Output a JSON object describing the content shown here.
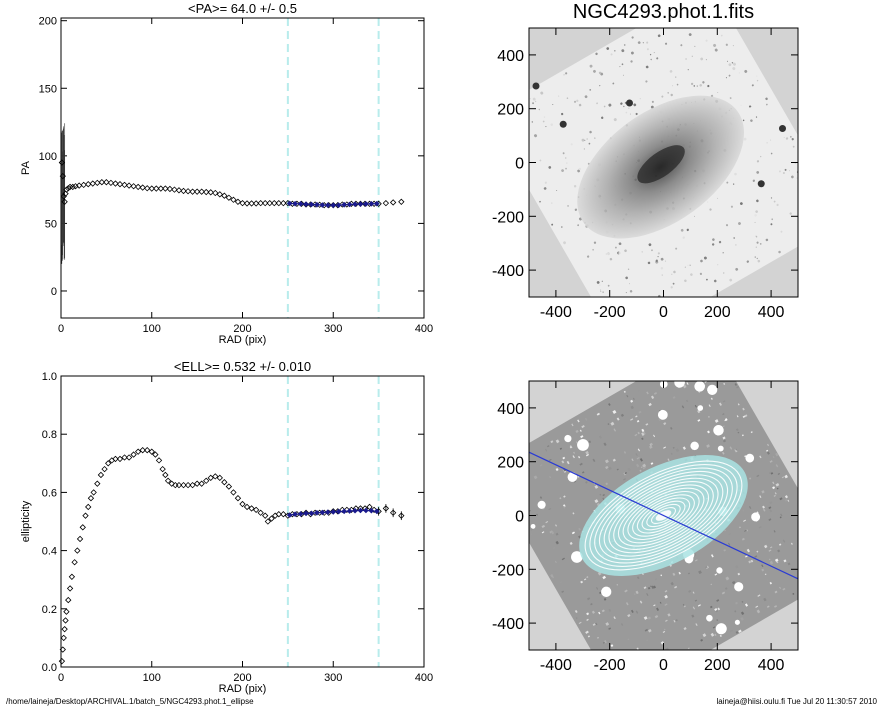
{
  "footer": {
    "path": "/home/laineja/Desktop/ARCHIVAL.1/batch_5/NGC4293.phot.1_ellipse",
    "user_date": "laineja@hiisi.oulu.fi  Tue Jul 20 11:30:57 2010"
  },
  "chart_data": [
    {
      "id": "pa",
      "type": "scatter",
      "title": "<PA>=  64.0 +/-   0.5",
      "xlabel": "RAD (pix)",
      "ylabel": "PA",
      "xlim": [
        0,
        400
      ],
      "ylim": [
        -20,
        202
      ],
      "xticks": [
        0,
        100,
        200,
        300,
        400
      ],
      "yticks": [
        0,
        50,
        100,
        150,
        200
      ],
      "vlines": [
        250,
        350
      ],
      "vline_color": "#b8ecec",
      "fit_color": "#1a1a8c",
      "series": [
        {
          "points": [
            [
              1,
              95
            ],
            [
              2,
              85
            ],
            [
              3,
              70
            ],
            [
              4,
              66
            ],
            [
              5,
              72
            ],
            [
              6,
              75
            ],
            [
              8,
              76
            ],
            [
              10,
              77
            ],
            [
              13,
              77
            ],
            [
              16,
              77.5
            ],
            [
              20,
              78
            ],
            [
              25,
              78.5
            ],
            [
              30,
              79
            ],
            [
              35,
              79.5
            ],
            [
              40,
              80
            ],
            [
              45,
              80.5
            ],
            [
              50,
              80.5
            ],
            [
              55,
              80
            ],
            [
              60,
              79.5
            ],
            [
              65,
              79
            ],
            [
              70,
              78.5
            ],
            [
              75,
              78
            ],
            [
              80,
              77.5
            ],
            [
              85,
              77
            ],
            [
              90,
              76.5
            ],
            [
              95,
              76
            ],
            [
              100,
              75.8
            ],
            [
              105,
              75.8
            ],
            [
              110,
              75.8
            ],
            [
              115,
              75.8
            ],
            [
              120,
              75.5
            ],
            [
              125,
              75
            ],
            [
              130,
              74.5
            ],
            [
              135,
              74
            ],
            [
              140,
              73.8
            ],
            [
              145,
              73.5
            ],
            [
              150,
              73.5
            ],
            [
              155,
              73.5
            ],
            [
              160,
              73.2
            ],
            [
              165,
              73
            ],
            [
              170,
              72.5
            ],
            [
              175,
              71.5
            ],
            [
              180,
              70.5
            ],
            [
              185,
              69
            ],
            [
              190,
              67.5
            ],
            [
              195,
              66
            ],
            [
              200,
              65
            ],
            [
              205,
              64.8
            ],
            [
              210,
              64.8
            ],
            [
              215,
              64.8
            ],
            [
              220,
              65
            ],
            [
              225,
              65
            ],
            [
              230,
              65
            ],
            [
              235,
              65
            ],
            [
              240,
              65
            ],
            [
              245,
              65
            ],
            [
              250,
              65
            ],
            [
              255,
              64.5
            ],
            [
              260,
              64.5
            ],
            [
              265,
              64.5
            ],
            [
              270,
              64
            ],
            [
              275,
              64
            ],
            [
              280,
              64
            ],
            [
              285,
              63.8
            ],
            [
              290,
              63.5
            ],
            [
              295,
              63.5
            ],
            [
              300,
              63.5
            ],
            [
              305,
              63.5
            ],
            [
              310,
              64
            ],
            [
              315,
              64
            ],
            [
              320,
              64.5
            ],
            [
              325,
              64.5
            ],
            [
              330,
              64.5
            ],
            [
              335,
              64.5
            ],
            [
              340,
              64.5
            ],
            [
              345,
              64.5
            ],
            [
              350,
              64.5
            ],
            [
              358,
              65
            ],
            [
              366,
              65.5
            ],
            [
              375,
              66
            ]
          ],
          "fit_points": [
            [
              252,
              64.8
            ],
            [
              258,
              64.6
            ],
            [
              264,
              64.5
            ],
            [
              270,
              64.2
            ],
            [
              276,
              64
            ],
            [
              282,
              63.8
            ],
            [
              288,
              63.6
            ],
            [
              294,
              63.5
            ],
            [
              300,
              63.4
            ],
            [
              306,
              63.5
            ],
            [
              312,
              63.8
            ],
            [
              318,
              64
            ],
            [
              324,
              64.2
            ],
            [
              330,
              64.3
            ],
            [
              336,
              64.4
            ],
            [
              342,
              64.5
            ],
            [
              348,
              64.6
            ]
          ]
        }
      ]
    },
    {
      "id": "ell",
      "type": "scatter",
      "title": "<ELL>= 0.532 +/-  0.010",
      "xlabel": "RAD (pix)",
      "ylabel": "ellipticity",
      "xlim": [
        0,
        400
      ],
      "ylim": [
        0,
        1
      ],
      "xticks": [
        0,
        100,
        200,
        300,
        400
      ],
      "yticks": [
        0,
        0.2,
        0.4,
        0.6,
        0.8,
        1.0
      ],
      "yticklabels": [
        "0.0",
        "0.2",
        "0.4",
        "0.6",
        "0.8",
        "1.0"
      ],
      "vlines": [
        250,
        350
      ],
      "vline_color": "#b8ecec",
      "fit_color": "#1a1a8c",
      "series": [
        {
          "points": [
            [
              1,
              0.02
            ],
            [
              2,
              0.06
            ],
            [
              3,
              0.1
            ],
            [
              4,
              0.13
            ],
            [
              5,
              0.16
            ],
            [
              6,
              0.19
            ],
            [
              8,
              0.23
            ],
            [
              10,
              0.27
            ],
            [
              12,
              0.31
            ],
            [
              15,
              0.36
            ],
            [
              18,
              0.4
            ],
            [
              21,
              0.44
            ],
            [
              24,
              0.48
            ],
            [
              27,
              0.52
            ],
            [
              30,
              0.55
            ],
            [
              33,
              0.58
            ],
            [
              36,
              0.6
            ],
            [
              40,
              0.63
            ],
            [
              44,
              0.66
            ],
            [
              48,
              0.68
            ],
            [
              52,
              0.7
            ],
            [
              56,
              0.71
            ],
            [
              60,
              0.715
            ],
            [
              65,
              0.715
            ],
            [
              70,
              0.72
            ],
            [
              75,
              0.72
            ],
            [
              80,
              0.73
            ],
            [
              85,
              0.74
            ],
            [
              90,
              0.745
            ],
            [
              95,
              0.745
            ],
            [
              100,
              0.74
            ],
            [
              104,
              0.73
            ],
            [
              108,
              0.71
            ],
            [
              112,
              0.68
            ],
            [
              115,
              0.66
            ],
            [
              118,
              0.64
            ],
            [
              122,
              0.63
            ],
            [
              126,
              0.625
            ],
            [
              130,
              0.625
            ],
            [
              135,
              0.625
            ],
            [
              140,
              0.625
            ],
            [
              145,
              0.625
            ],
            [
              150,
              0.63
            ],
            [
              155,
              0.63
            ],
            [
              160,
              0.64
            ],
            [
              165,
              0.65
            ],
            [
              170,
              0.655
            ],
            [
              175,
              0.65
            ],
            [
              180,
              0.635
            ],
            [
              185,
              0.62
            ],
            [
              190,
              0.6
            ],
            [
              195,
              0.58
            ],
            [
              200,
              0.56
            ],
            [
              205,
              0.55
            ],
            [
              210,
              0.545
            ],
            [
              215,
              0.54
            ],
            [
              220,
              0.53
            ],
            [
              225,
              0.52
            ],
            [
              228,
              0.5
            ],
            [
              232,
              0.51
            ],
            [
              236,
              0.52
            ],
            [
              240,
              0.525
            ],
            [
              245,
              0.525
            ],
            [
              250,
              0.52
            ],
            [
              255,
              0.525
            ],
            [
              260,
              0.525
            ],
            [
              265,
              0.525
            ],
            [
              270,
              0.53
            ],
            [
              275,
              0.525
            ],
            [
              280,
              0.53
            ],
            [
              285,
              0.53
            ],
            [
              290,
              0.53
            ],
            [
              295,
              0.53
            ],
            [
              300,
              0.535
            ],
            [
              305,
              0.535
            ],
            [
              310,
              0.54
            ],
            [
              315,
              0.54
            ],
            [
              320,
              0.54
            ],
            [
              325,
              0.545
            ],
            [
              330,
              0.545
            ],
            [
              335,
              0.545
            ],
            [
              340,
              0.55
            ],
            [
              345,
              0.54
            ],
            [
              350,
              0.535
            ],
            [
              358,
              0.545
            ],
            [
              366,
              0.53
            ],
            [
              375,
              0.52
            ]
          ],
          "fit_points": [
            [
              252,
              0.522
            ],
            [
              258,
              0.525
            ],
            [
              264,
              0.526
            ],
            [
              270,
              0.528
            ],
            [
              276,
              0.528
            ],
            [
              282,
              0.53
            ],
            [
              288,
              0.531
            ],
            [
              294,
              0.532
            ],
            [
              300,
              0.533
            ],
            [
              306,
              0.534
            ],
            [
              312,
              0.535
            ],
            [
              318,
              0.536
            ],
            [
              324,
              0.537
            ],
            [
              330,
              0.538
            ],
            [
              336,
              0.538
            ],
            [
              342,
              0.537
            ],
            [
              348,
              0.535
            ]
          ]
        }
      ]
    },
    {
      "id": "img1",
      "type": "image",
      "title": "NGC4293.phot.1.fits",
      "xlim": [
        -500,
        500
      ],
      "ylim": [
        -500,
        500
      ],
      "xticks": [
        -400,
        -200,
        0,
        200,
        400
      ],
      "yticks": [
        -400,
        -200,
        0,
        200,
        400
      ]
    },
    {
      "id": "img2",
      "type": "image",
      "title": "",
      "xlim": [
        -500,
        500
      ],
      "ylim": [
        -500,
        500
      ],
      "xticks": [
        -400,
        -200,
        0,
        200,
        400
      ],
      "yticks": [
        -400,
        -200,
        0,
        200,
        400
      ],
      "pa_line_color": "#2a3bd4",
      "contour_color": "#ffffff",
      "halo_color": "#a9e3e3"
    }
  ]
}
